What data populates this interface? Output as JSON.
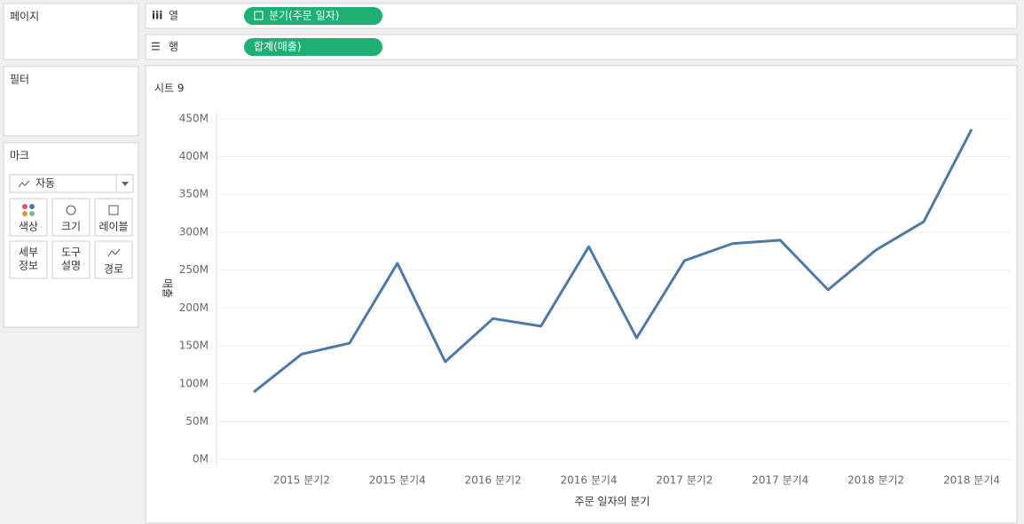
{
  "ui": {
    "pages": "페이지",
    "filters": "필터",
    "marks": "마크",
    "mark_type": "자동",
    "mark_buttons": [
      [
        "색상"
      ],
      [
        "크기"
      ],
      [
        "레이블"
      ],
      [
        "세부",
        "정보"
      ],
      [
        "도구",
        "설명"
      ],
      [
        "경로"
      ]
    ],
    "columns_label": "열",
    "rows_label": "행",
    "columns_pill": "분기(주문 일자)",
    "rows_pill": "합계(매출)"
  },
  "chart_data": {
    "type": "line",
    "title": "시트 9",
    "x_label": "주문 일자의 분기",
    "y_label": "매출",
    "categories": [
      null,
      "2015 분기2",
      null,
      "2015 분기4",
      null,
      "2016 분기2",
      null,
      "2016 분기4",
      null,
      "2017 분기2",
      null,
      "2017 분기4",
      null,
      "2018 분기2",
      null,
      "2018 분기4"
    ],
    "values": [
      89000000,
      139000000,
      153500000,
      259000000,
      129000000,
      186000000,
      176000000,
      281000000,
      160500000,
      262500000,
      285000000,
      289500000,
      224000000,
      276500000,
      314000000,
      436000000
    ],
    "color": "#4e79a7",
    "ylim": [
      -8000000,
      458000000
    ],
    "yticks": [
      {
        "value": 0,
        "label": "0M"
      },
      {
        "value": 50000000,
        "label": "50M"
      },
      {
        "value": 100000000,
        "label": "100M"
      },
      {
        "value": 150000000,
        "label": "150M"
      },
      {
        "value": 200000000,
        "label": "200M"
      },
      {
        "value": 250000000,
        "label": "250M"
      },
      {
        "value": 300000000,
        "label": "300M"
      },
      {
        "value": 350000000,
        "label": "350M"
      },
      {
        "value": 400000000,
        "label": "400M"
      },
      {
        "value": 450000000,
        "label": "450M"
      }
    ],
    "grid": true
  }
}
